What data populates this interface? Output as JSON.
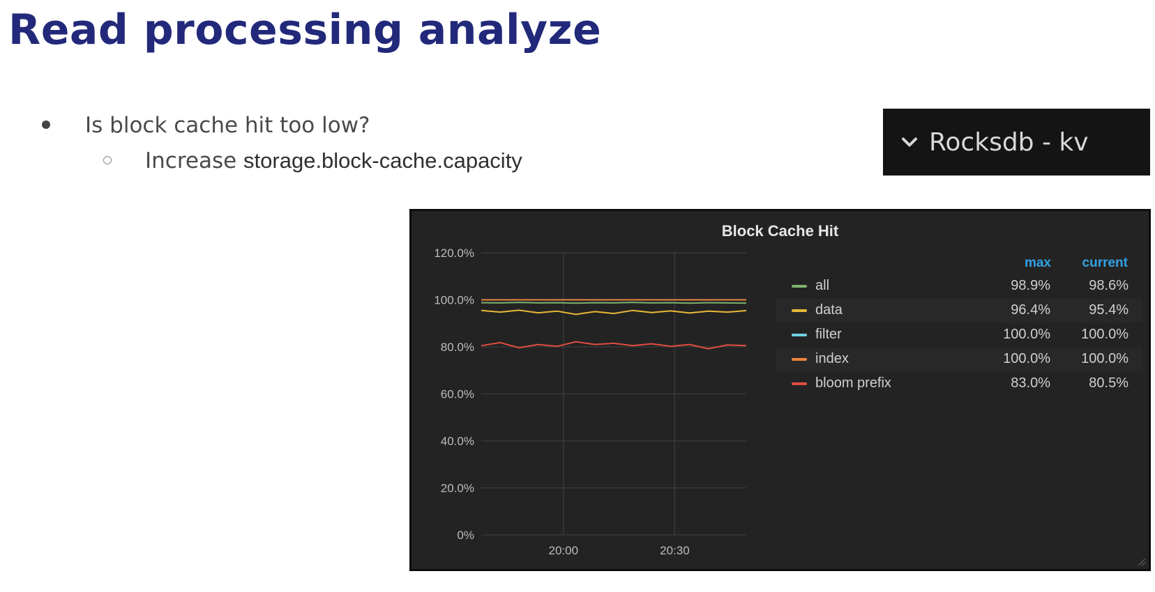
{
  "slide": {
    "title": "Read processing analyze",
    "bullet_1": "Is block cache hit too low?",
    "bullet_2_prefix": "Increase ",
    "bullet_2_setting": "storage.block-cache.capacity"
  },
  "dashboard_row": {
    "label": "Rocksdb - kv",
    "icon": "chevron-down-icon"
  },
  "panel": {
    "title": "Block Cache Hit",
    "legend_headers": {
      "max": "max",
      "current": "current"
    },
    "legend": [
      {
        "name": "all",
        "max": "98.9%",
        "current": "98.6%",
        "color": "#7eb26d"
      },
      {
        "name": "data",
        "max": "96.4%",
        "current": "95.4%",
        "color": "#eab839"
      },
      {
        "name": "filter",
        "max": "100.0%",
        "current": "100.0%",
        "color": "#6ed0e0"
      },
      {
        "name": "index",
        "max": "100.0%",
        "current": "100.0%",
        "color": "#ef843c"
      },
      {
        "name": "bloom prefix",
        "max": "83.0%",
        "current": "80.5%",
        "color": "#e24d42"
      }
    ]
  },
  "chart_data": {
    "type": "line",
    "title": "Block Cache Hit",
    "xlabel": "",
    "ylabel": "",
    "ylim": [
      0,
      120
    ],
    "y_ticks": [
      "120.0%",
      "100.0%",
      "80.0%",
      "60.0%",
      "40.0%",
      "20.0%",
      "0%"
    ],
    "x_ticks": [
      "20:00",
      "20:30"
    ],
    "grid": true,
    "legend_placement": "right",
    "series": [
      {
        "name": "all",
        "color": "#7eb26d",
        "values": [
          98.8,
          98.7,
          98.9,
          98.7,
          98.8,
          98.6,
          98.8,
          98.7,
          98.9,
          98.7,
          98.8,
          98.6,
          98.8,
          98.7,
          98.6
        ]
      },
      {
        "name": "data",
        "color": "#eab839",
        "values": [
          95.5,
          94.8,
          95.6,
          94.5,
          95.2,
          93.8,
          95.0,
          94.2,
          95.5,
          94.6,
          95.3,
          94.4,
          95.2,
          94.8,
          95.4
        ]
      },
      {
        "name": "filter",
        "color": "#6ed0e0",
        "values": [
          100,
          100,
          100,
          100,
          100,
          100,
          100,
          100,
          100,
          100,
          100,
          100,
          100,
          100,
          100
        ]
      },
      {
        "name": "index",
        "color": "#ef843c",
        "values": [
          100,
          100,
          100,
          100,
          100,
          100,
          100,
          100,
          100,
          100,
          100,
          100,
          100,
          100,
          100
        ]
      },
      {
        "name": "bloom prefix",
        "color": "#e24d42",
        "values": [
          80.5,
          81.8,
          79.6,
          81.0,
          80.2,
          82.2,
          81.0,
          81.5,
          80.5,
          81.3,
          80.2,
          81.0,
          79.2,
          80.8,
          80.5
        ]
      }
    ]
  }
}
